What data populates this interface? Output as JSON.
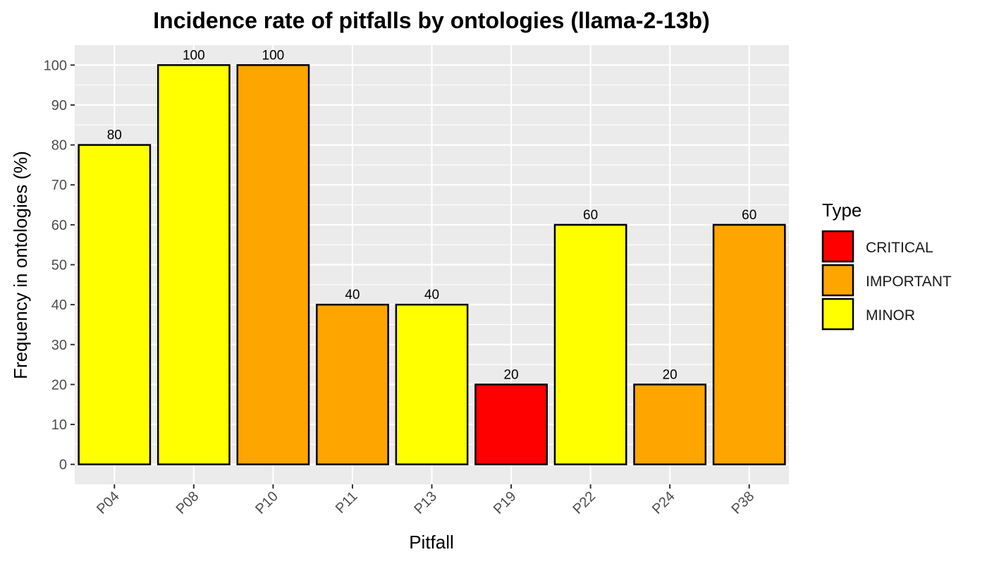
{
  "chart_data": {
    "type": "bar",
    "title": "Incidence rate of pitfalls by ontologies (llama-2-13b)",
    "xlabel": "Pitfall",
    "ylabel": "Frequency in ontologies (%)",
    "ylim": [
      -5,
      105
    ],
    "yticks": [
      0,
      10,
      20,
      30,
      40,
      50,
      60,
      70,
      80,
      90,
      100
    ],
    "categories": [
      "P04",
      "P08",
      "P10",
      "P11",
      "P13",
      "P19",
      "P22",
      "P24",
      "P38"
    ],
    "values": [
      80,
      100,
      100,
      40,
      40,
      20,
      60,
      20,
      60
    ],
    "types": [
      "MINOR",
      "MINOR",
      "IMPORTANT",
      "IMPORTANT",
      "MINOR",
      "CRITICAL",
      "MINOR",
      "IMPORTANT",
      "IMPORTANT"
    ],
    "grid": true,
    "legend": {
      "title": "Type",
      "position": "right",
      "entries": [
        {
          "label": "CRITICAL",
          "color": "#ff0000"
        },
        {
          "label": "IMPORTANT",
          "color": "#ffa500"
        },
        {
          "label": "MINOR",
          "color": "#ffff00"
        }
      ]
    },
    "colors": {
      "panel_background": "#ebebeb",
      "gridline": "#ffffff",
      "bar_outline": "#000000"
    }
  }
}
